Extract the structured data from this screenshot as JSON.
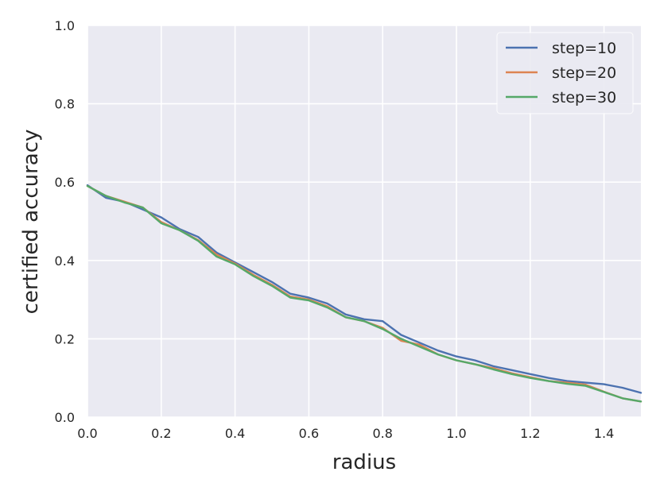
{
  "chart_data": {
    "type": "line",
    "xlabel": "radius",
    "ylabel": "certified accuracy",
    "xlim": [
      0,
      1.5
    ],
    "ylim": [
      0,
      1.0
    ],
    "xticks": [
      "0.0",
      "0.2",
      "0.4",
      "0.6",
      "0.8",
      "1.0",
      "1.2",
      "1.4"
    ],
    "yticks": [
      "0.0",
      "0.2",
      "0.4",
      "0.6",
      "0.8",
      "1.0"
    ],
    "grid": true,
    "legend_position": "top-right",
    "x": [
      0.0,
      0.05,
      0.1,
      0.15,
      0.2,
      0.25,
      0.3,
      0.35,
      0.4,
      0.45,
      0.5,
      0.55,
      0.6,
      0.65,
      0.7,
      0.75,
      0.8,
      0.85,
      0.9,
      0.95,
      1.0,
      1.05,
      1.1,
      1.15,
      1.2,
      1.25,
      1.3,
      1.35,
      1.4,
      1.45,
      1.5
    ],
    "series": [
      {
        "name": "step=10",
        "color": "#4c72b0",
        "values": [
          0.592,
          0.56,
          0.55,
          0.53,
          0.51,
          0.48,
          0.46,
          0.42,
          0.395,
          0.37,
          0.345,
          0.315,
          0.305,
          0.29,
          0.262,
          0.25,
          0.245,
          0.21,
          0.19,
          0.17,
          0.155,
          0.145,
          0.13,
          0.12,
          0.11,
          0.1,
          0.092,
          0.088,
          0.084,
          0.075,
          0.062
        ]
      },
      {
        "name": "step=20",
        "color": "#dd8452",
        "values": [
          0.59,
          0.565,
          0.55,
          0.535,
          0.498,
          0.477,
          0.452,
          0.415,
          0.392,
          0.363,
          0.338,
          0.308,
          0.3,
          0.283,
          0.255,
          0.245,
          0.228,
          0.195,
          0.185,
          0.16,
          0.145,
          0.135,
          0.125,
          0.112,
          0.102,
          0.092,
          0.088,
          0.083,
          0.065,
          0.048,
          0.04
        ]
      },
      {
        "name": "step=30",
        "color": "#55a868",
        "values": [
          0.59,
          0.565,
          0.548,
          0.535,
          0.495,
          0.477,
          0.45,
          0.41,
          0.39,
          0.36,
          0.335,
          0.305,
          0.298,
          0.28,
          0.255,
          0.245,
          0.225,
          0.2,
          0.18,
          0.16,
          0.145,
          0.135,
          0.122,
          0.11,
          0.1,
          0.092,
          0.085,
          0.08,
          0.064,
          0.048,
          0.04
        ]
      }
    ]
  }
}
